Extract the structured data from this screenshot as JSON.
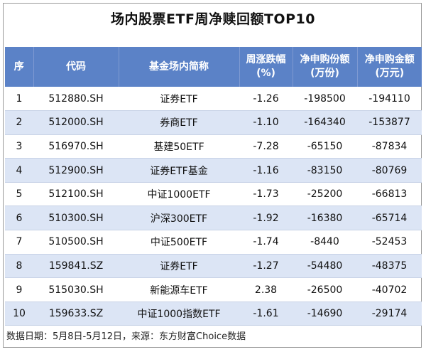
{
  "title": "场内股票ETF周净赎回额TOP10",
  "headers": {
    "rank": "序",
    "code": "代码",
    "name": "基金场内简称",
    "change_line1": "周涨跌幅",
    "change_line2": "(%)",
    "units_line1": "净申购份额",
    "units_line2": "(万份)",
    "amount_line1": "净申购金额",
    "amount_line2": "(万元)"
  },
  "rows": [
    {
      "rank": "1",
      "code": "512880.SH",
      "name": "证券ETF",
      "change": "-1.26",
      "units": "-198500",
      "amount": "-194110"
    },
    {
      "rank": "2",
      "code": "512000.SH",
      "name": "券商ETF",
      "change": "-1.10",
      "units": "-164340",
      "amount": "-153877"
    },
    {
      "rank": "3",
      "code": "516970.SH",
      "name": "基建50ETF",
      "change": "-7.28",
      "units": "-65150",
      "amount": "-87834"
    },
    {
      "rank": "4",
      "code": "512900.SH",
      "name": "证券ETF基金",
      "change": "-1.16",
      "units": "-83150",
      "amount": "-80769"
    },
    {
      "rank": "5",
      "code": "512100.SH",
      "name": "中证1000ETF",
      "change": "-1.73",
      "units": "-25200",
      "amount": "-66813"
    },
    {
      "rank": "6",
      "code": "510300.SH",
      "name": "沪深300ETF",
      "change": "-1.92",
      "units": "-16380",
      "amount": "-65714"
    },
    {
      "rank": "7",
      "code": "510500.SH",
      "name": "中证500ETF",
      "change": "-1.74",
      "units": "-8440",
      "amount": "-52453"
    },
    {
      "rank": "8",
      "code": "159841.SZ",
      "name": "证券ETF",
      "change": "-1.27",
      "units": "-54480",
      "amount": "-48375"
    },
    {
      "rank": "9",
      "code": "515030.SH",
      "name": "新能源车ETF",
      "change": "2.38",
      "units": "-26500",
      "amount": "-40702"
    },
    {
      "rank": "10",
      "code": "159633.SZ",
      "name": "中证1000指数ETF",
      "change": "-1.61",
      "units": "-14690",
      "amount": "-29174"
    }
  ],
  "footer": "数据日期：5月8日-5月12日，来源：东方财富Choice数据"
}
